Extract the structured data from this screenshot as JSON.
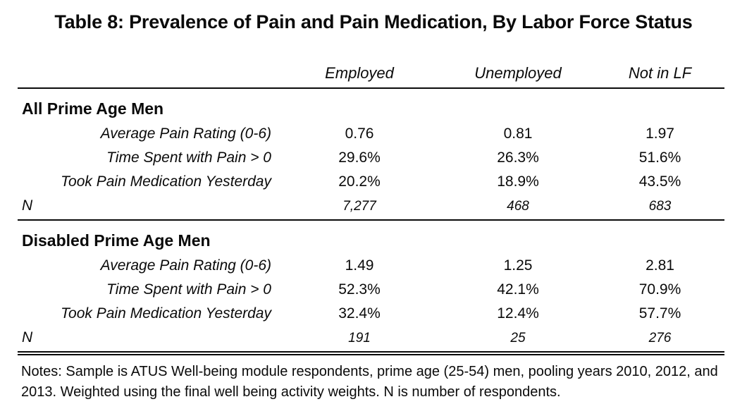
{
  "title": "Table 8: Prevalence of Pain and Pain Medication, By Labor Force Status",
  "columns": [
    "Employed",
    "Unemployed",
    "Not in LF"
  ],
  "sections": [
    {
      "header": "All Prime Age Men",
      "rows": [
        {
          "label": "Average Pain Rating (0-6)",
          "values": [
            "0.76",
            "0.81",
            "1.97"
          ]
        },
        {
          "label": "Time Spent with Pain > 0",
          "values": [
            "29.6%",
            "26.3%",
            "51.6%"
          ]
        },
        {
          "label": "Took Pain Medication Yesterday",
          "values": [
            "20.2%",
            "18.9%",
            "43.5%"
          ]
        }
      ],
      "n_label": "N",
      "n_values": [
        "7,277",
        "468",
        "683"
      ]
    },
    {
      "header": "Disabled Prime Age Men",
      "rows": [
        {
          "label": "Average Pain Rating (0-6)",
          "values": [
            "1.49",
            "1.25",
            "2.81"
          ]
        },
        {
          "label": "Time Spent with Pain > 0",
          "values": [
            "52.3%",
            "42.1%",
            "70.9%"
          ]
        },
        {
          "label": "Took Pain Medication Yesterday",
          "values": [
            "32.4%",
            "12.4%",
            "57.7%"
          ]
        }
      ],
      "n_label": "N",
      "n_values": [
        "191",
        "25",
        "276"
      ]
    }
  ],
  "notes": "Notes: Sample is ATUS Well-being module respondents, prime age (25-54) men, pooling years 2010, 2012, and 2013. Weighted using the final well being activity weights. N is number of respondents."
}
